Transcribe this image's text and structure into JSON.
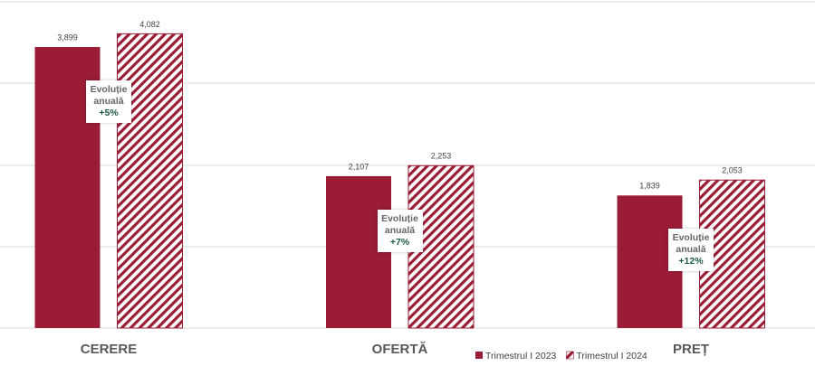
{
  "chart_data": {
    "type": "bar",
    "categories": [
      "CERERE",
      "OFERTĂ",
      "PREȚ"
    ],
    "series": [
      {
        "name": "Trimestrul I 2023",
        "color": "#9a1c35",
        "values": [
          3899,
          2107,
          1839
        ],
        "value_labels": [
          "3,899",
          "2,107",
          "1,839"
        ]
      },
      {
        "name": "Trimestrul I 2024",
        "color": "#9a1c35",
        "hatched": true,
        "values": [
          4082,
          2253,
          2053
        ],
        "value_labels": [
          "4,082",
          "2,253",
          "2,053"
        ]
      }
    ],
    "annotations": [
      {
        "text": "Evoluție anuală",
        "change": "+5%"
      },
      {
        "text": "Evoluție anuală",
        "change": "+7%"
      },
      {
        "text": "Evoluție anuală",
        "change": "+12%"
      }
    ],
    "ylim": [
      0,
      4300
    ],
    "legend": "bottom"
  }
}
